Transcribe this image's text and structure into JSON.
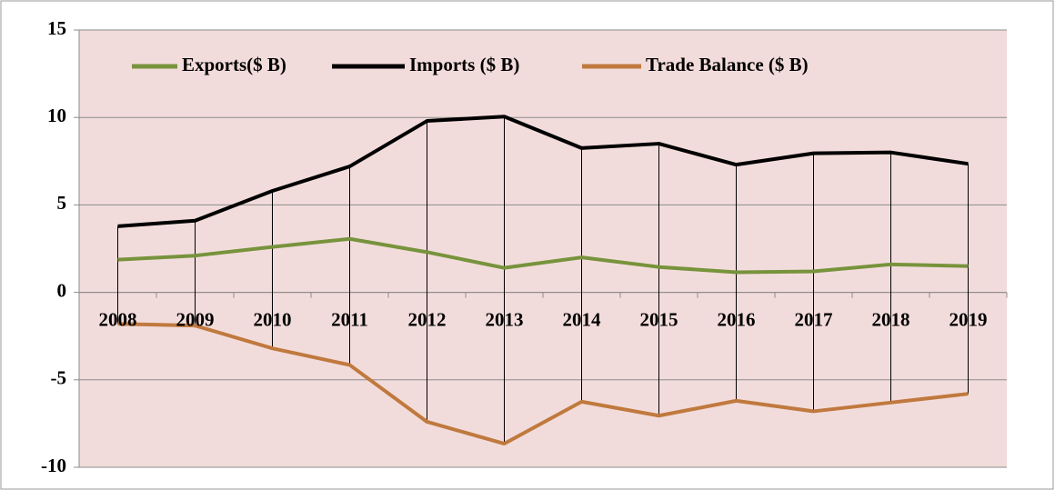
{
  "chart_data": {
    "type": "line",
    "categories": [
      "2008",
      "2009",
      "2010",
      "2011",
      "2012",
      "2013",
      "2014",
      "2015",
      "2016",
      "2017",
      "2018",
      "2019"
    ],
    "series": [
      {
        "name": "Exports($ B)",
        "color": "#77933c",
        "values": [
          1.87,
          2.1,
          2.6,
          3.06,
          2.3,
          1.4,
          2.0,
          1.45,
          1.15,
          1.2,
          1.6,
          1.5
        ]
      },
      {
        "name": "Imports ($ B)",
        "color": "#000000",
        "values": [
          3.78,
          4.1,
          5.8,
          7.2,
          9.8,
          10.05,
          8.25,
          8.5,
          7.3,
          7.95,
          8.0,
          7.35
        ]
      },
      {
        "name": "Trade Balance ($ B)",
        "color": "#c0793e",
        "values": [
          -1.8,
          -1.9,
          -3.2,
          -4.15,
          -7.4,
          -8.65,
          -6.25,
          -7.05,
          -6.2,
          -6.8,
          -6.3,
          -5.8
        ]
      }
    ],
    "ylim": [
      -10,
      15
    ],
    "yticks": [
      -10,
      -5,
      0,
      5,
      10,
      15
    ],
    "grid": true,
    "high_low_lines": true,
    "legend": "top"
  }
}
